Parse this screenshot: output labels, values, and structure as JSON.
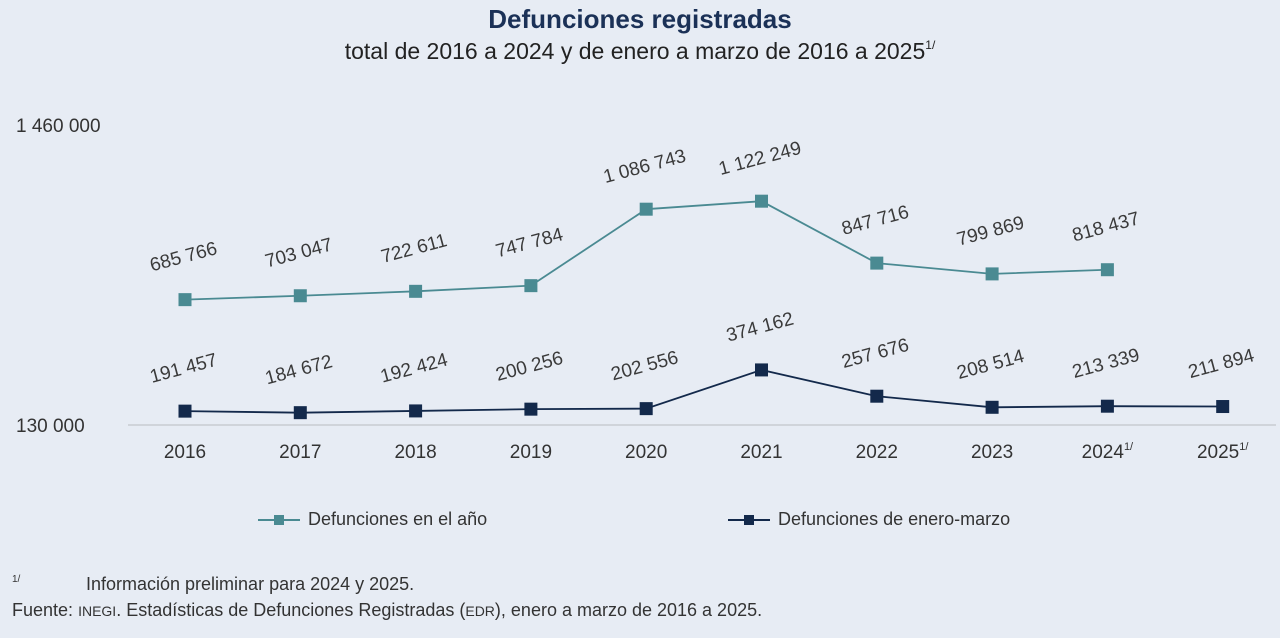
{
  "title": "Defunciones registradas",
  "subtitle": "total de 2016 a 2024 y de enero a marzo de 2016 a 2025",
  "subtitle_sup": "1/",
  "colors": {
    "background": "#e7ecf4",
    "series_annual": "#4a8a92",
    "series_q1": "#13294b",
    "axis": "#c8ccd2",
    "text": "#3a3a3a"
  },
  "chart_data": {
    "type": "line",
    "title": "Defunciones registradas",
    "subtitle": "total de 2016 a 2024 y de enero a marzo de 2016 a 2025 1/",
    "xlabel": "",
    "ylabel": "",
    "categories": [
      "2016",
      "2017",
      "2018",
      "2019",
      "2020",
      "2021",
      "2022",
      "2023",
      "2024",
      "2025"
    ],
    "category_labels": [
      {
        "text": "2016",
        "sup": ""
      },
      {
        "text": "2017",
        "sup": ""
      },
      {
        "text": "2018",
        "sup": ""
      },
      {
        "text": "2019",
        "sup": ""
      },
      {
        "text": "2020",
        "sup": ""
      },
      {
        "text": "2021",
        "sup": ""
      },
      {
        "text": "2022",
        "sup": ""
      },
      {
        "text": "2023",
        "sup": ""
      },
      {
        "text": "2024",
        "sup": "1/"
      },
      {
        "text": "2025",
        "sup": "1/"
      }
    ],
    "ylim": [
      130000,
      1460000
    ],
    "yticks": [
      130000,
      1460000
    ],
    "ytick_labels": [
      "130 000",
      "1 460 000"
    ],
    "grid": false,
    "legend_position": "bottom",
    "series": [
      {
        "name": "Defunciones en el año",
        "color": "#4a8a92",
        "marker": "square",
        "values": [
          685766,
          703047,
          722611,
          747784,
          1086743,
          1122249,
          847716,
          799869,
          818437,
          null
        ],
        "labels": [
          "685 766",
          "703 047",
          "722 611",
          "747 784",
          "1 086 743",
          "1 122 249",
          "847 716",
          "799 869",
          "818 437",
          null
        ]
      },
      {
        "name": "Defunciones de enero-marzo",
        "color": "#13294b",
        "marker": "square",
        "values": [
          191457,
          184672,
          192424,
          200256,
          202556,
          374162,
          257676,
          208514,
          213339,
          211894
        ],
        "labels": [
          "191 457",
          "184 672",
          "192 424",
          "200 256",
          "202 556",
          "374 162",
          "257 676",
          "208 514",
          "213 339",
          "211 894"
        ]
      }
    ]
  },
  "footnotes": {
    "note_marker": "1/",
    "note_text": "Información preliminar para 2024 y 2025.",
    "source_label": "Fuente:",
    "source_org": "INEGI",
    "source_text_1": ". Estadísticas de Defunciones Registradas (",
    "source_abbr": "EDR",
    "source_text_2": "), enero a marzo de 2016 a 2025."
  }
}
